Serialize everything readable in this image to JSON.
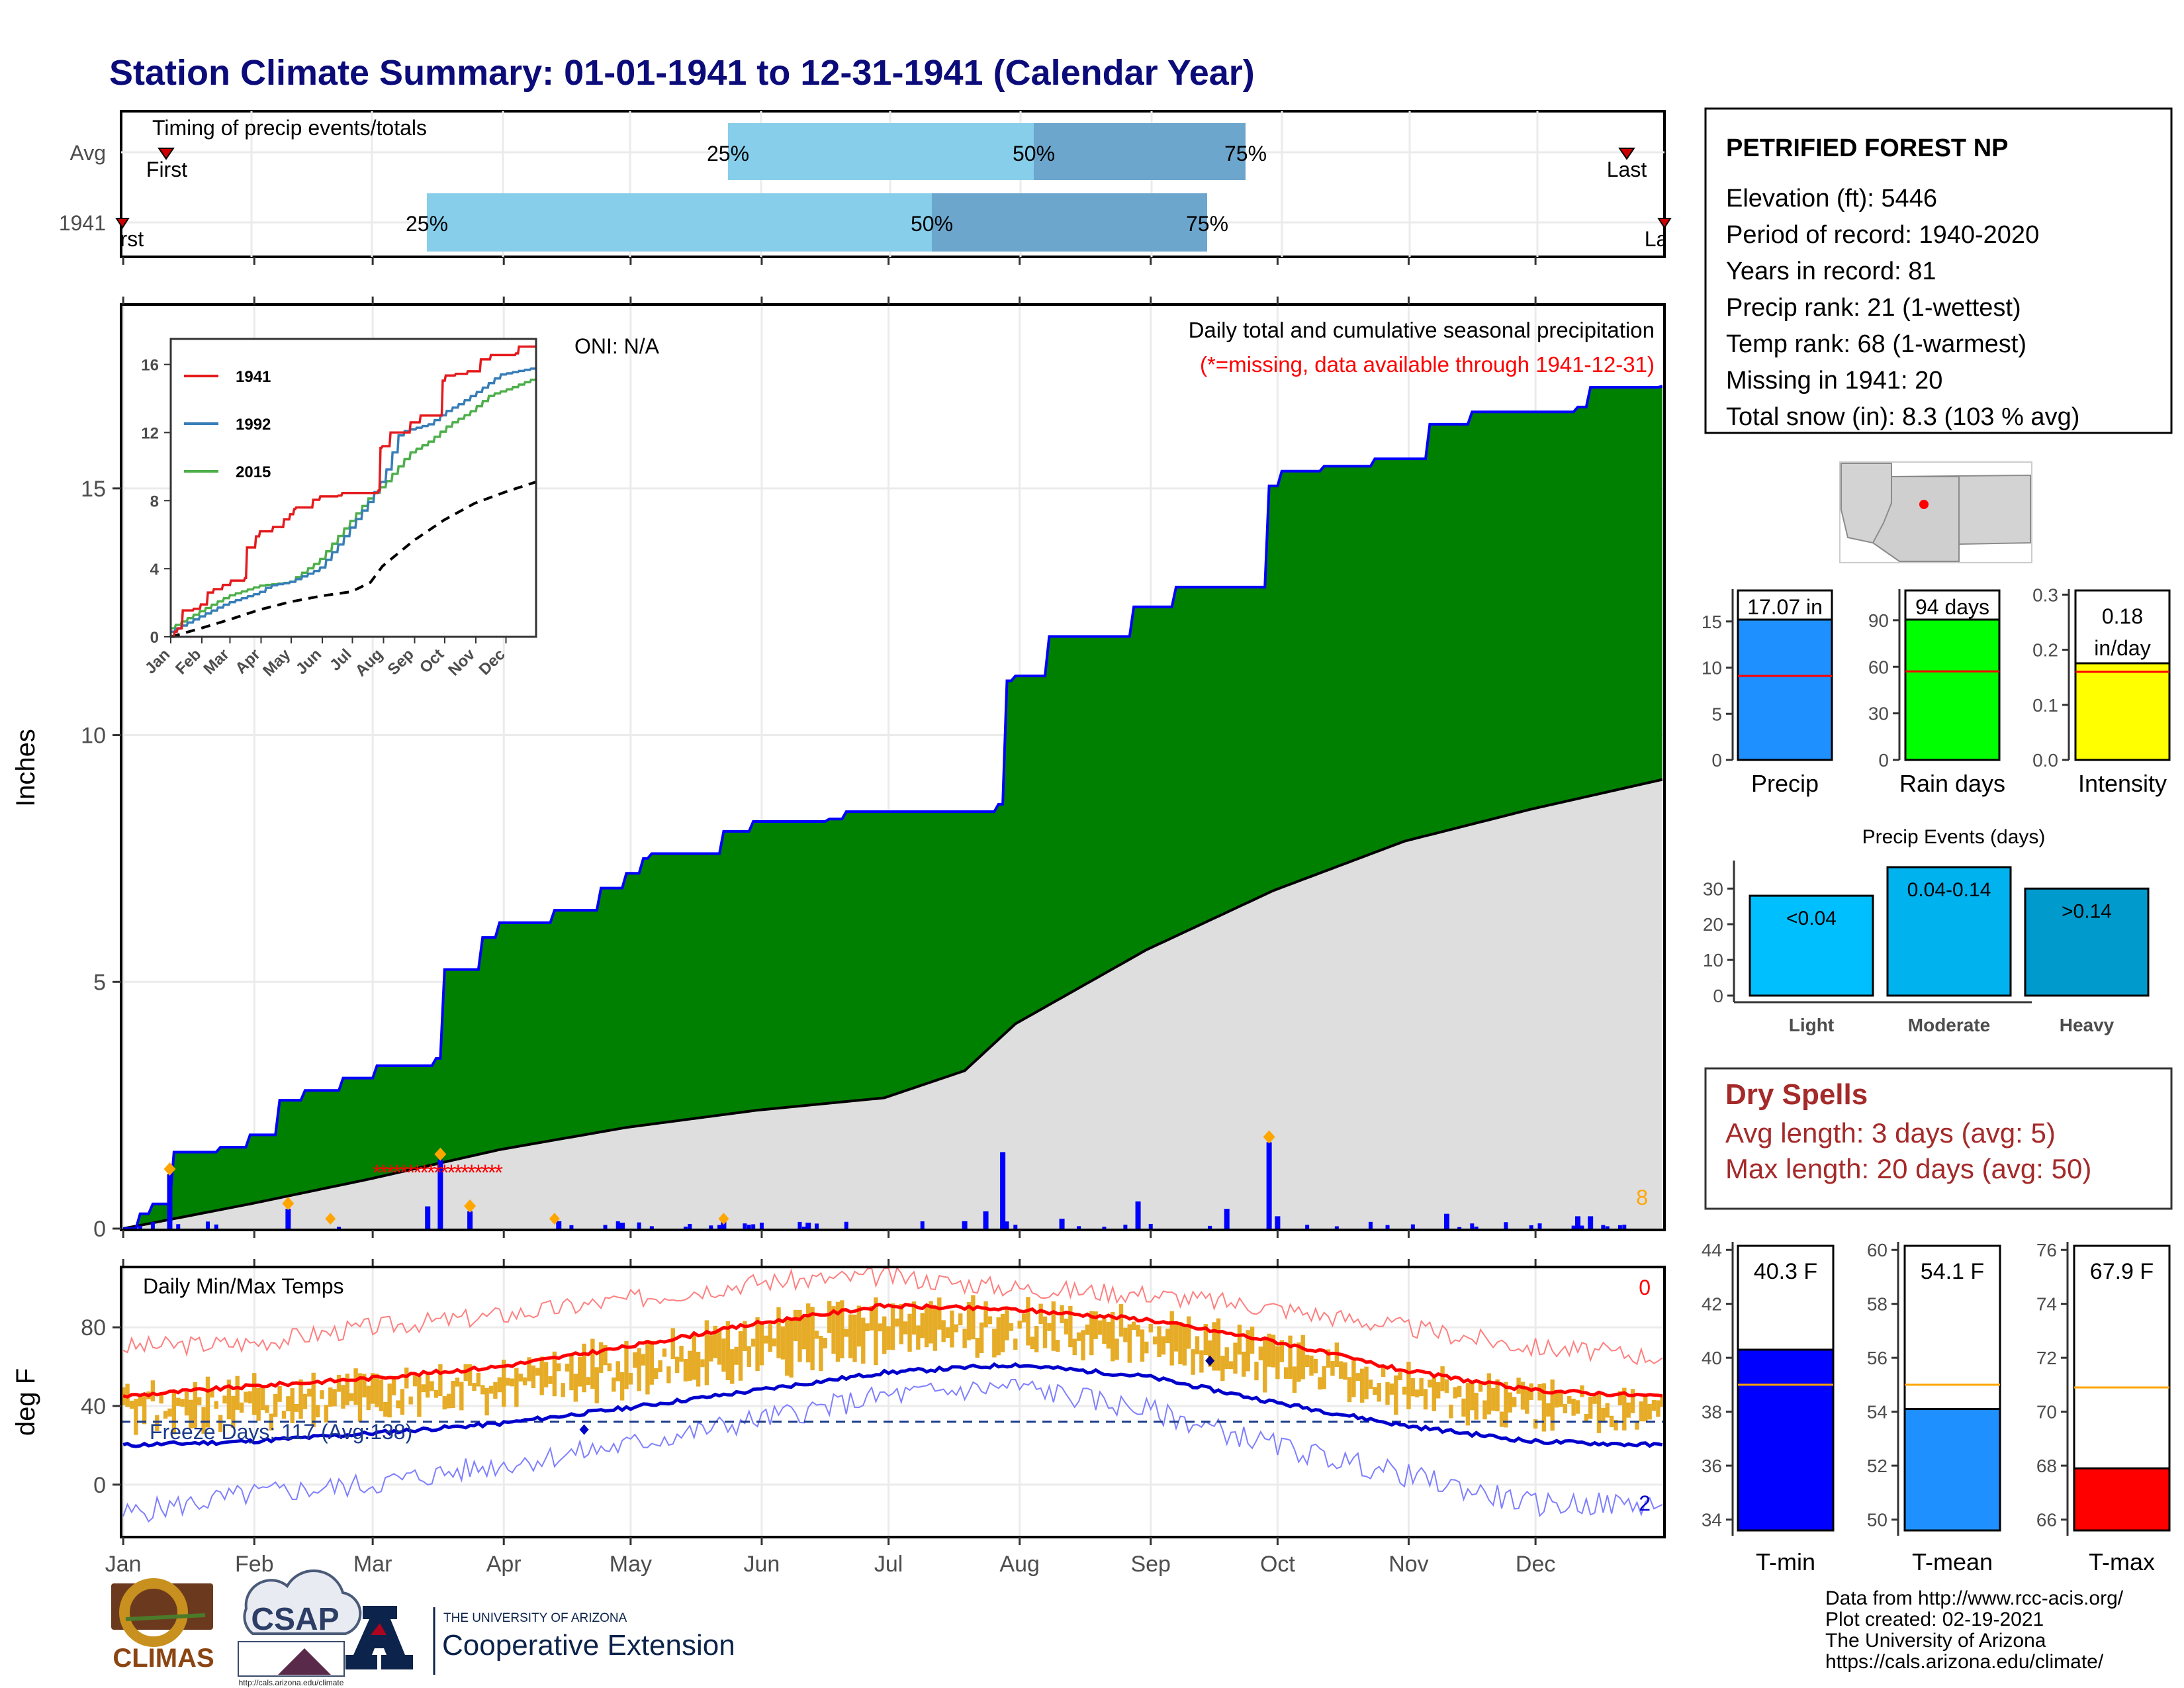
{
  "title": "Station Climate Summary: 01-01-1941 to 12-31-1941 (Calendar Year)",
  "station": {
    "name": "PETRIFIED FOREST NP",
    "lines": [
      "Elevation (ft): 5446",
      "Period of record: 1940-2020",
      "Years in record: 81",
      "Precip rank: 21 (1-wettest)",
      "Temp rank: 68 (1-warmest)",
      "Missing in 1941: 20",
      "Total snow (in): 8.3 (103 % avg)"
    ]
  },
  "timing": {
    "label": "Timing of precip events/totals",
    "rows": [
      {
        "row_label": "Avg",
        "first_label": "First",
        "last_label": "Last",
        "q25": "25%",
        "q50": "50%",
        "q75": "75%"
      },
      {
        "row_label": "1941",
        "first_label": "First",
        "last_label": "Last",
        "q25": "25%",
        "q50": "50%",
        "q75": "75%"
      }
    ]
  },
  "months": [
    "Jan",
    "Feb",
    "Mar",
    "Apr",
    "May",
    "Jun",
    "Jul",
    "Aug",
    "Sep",
    "Oct",
    "Nov",
    "Dec"
  ],
  "precip_panel": {
    "ylabel": "Inches",
    "yticks": [
      "0",
      "5",
      "10",
      "15"
    ],
    "oni": "ONI: N/A",
    "header": "Daily total and cumulative seasonal precipitation",
    "missing_note": "(*=missing, data available through 1941-12-31)",
    "count_label": "8"
  },
  "inset": {
    "yticks": [
      "0",
      "4",
      "8",
      "12",
      "16"
    ],
    "months": [
      "Jan",
      "Feb",
      "Mar",
      "Apr",
      "May",
      "Jun",
      "Jul",
      "Aug",
      "Sep",
      "Oct",
      "Nov",
      "Dec"
    ],
    "legend": [
      "1941",
      "1992",
      "2015"
    ],
    "colors": {
      "1941": "#e41a1c",
      "1992": "#377eb8",
      "2015": "#4daf4a"
    }
  },
  "temp_panel": {
    "ylabel": "deg F",
    "yticks": [
      "0",
      "40",
      "80"
    ],
    "header": "Daily Min/Max Temps",
    "freeze": "Freeze Days: 117 (Avg:138)",
    "max_count": "0",
    "min_count": "2"
  },
  "summary_bars": [
    {
      "label": "Precip",
      "value_text": "17.07 in",
      "yticks": [
        "0",
        "5",
        "10",
        "15"
      ],
      "color": "#1e90ff"
    },
    {
      "label": "Rain days",
      "value_text": "94 days",
      "yticks": [
        "0",
        "30",
        "60",
        "90"
      ],
      "color": "#00ff00"
    },
    {
      "label": "Intensity",
      "value_text": "0.18 in/day",
      "yticks": [
        "0.0",
        "0.1",
        "0.2",
        "0.3"
      ],
      "color": "#ffff00"
    }
  ],
  "events": {
    "title": "Precip Events (days)",
    "yticks": [
      "0",
      "10",
      "20",
      "30"
    ],
    "bars": [
      {
        "label": "Light",
        "range": "<0.04"
      },
      {
        "label": "Moderate",
        "range": "0.04-0.14"
      },
      {
        "label": "Heavy",
        "range": ">0.14"
      }
    ]
  },
  "dry_spells": {
    "title": "Dry Spells",
    "avg": "Avg length: 3 days (avg: 5)",
    "max": "Max length: 20 days (avg: 50)"
  },
  "temp_bars": [
    {
      "label": "T-min",
      "value_text": "40.3 F",
      "yticks": [
        "34",
        "36",
        "38",
        "40",
        "42",
        "44"
      ],
      "color": "#0000ff"
    },
    {
      "label": "T-mean",
      "value_text": "54.1 F",
      "yticks": [
        "50",
        "52",
        "54",
        "56",
        "58",
        "60"
      ],
      "color": "#1e90ff"
    },
    {
      "label": "T-max",
      "value_text": "67.9 F",
      "yticks": [
        "66",
        "68",
        "70",
        "72",
        "74",
        "76"
      ],
      "color": "#ff0000"
    }
  ],
  "footer": {
    "lines": [
      "Data from http://www.rcc-acis.org/",
      "Plot created: 02-19-2021",
      "The University of Arizona",
      "https://cals.arizona.edu/climate/"
    ],
    "logo_climas": "CLIMAS",
    "logo_csap": "CSAP",
    "logo_csap_url": "http://cals.arizona.edu/climate",
    "ua_small": "THE UNIVERSITY OF ARIZONA",
    "ua_big": "Cooperative Extension"
  },
  "chart_data": [
    {
      "type": "area",
      "title": "Daily total and cumulative seasonal precipitation",
      "ylabel": "Inches",
      "ylim": [
        0,
        18.7
      ],
      "x_unit": "day of year",
      "cumulative_1941": {
        "x": [
          1,
          5,
          8,
          13,
          24,
          31,
          38,
          44,
          53,
          61,
          75,
          77,
          86,
          90,
          103,
          114,
          120,
          124,
          126,
          143,
          150,
          168,
          172,
          208,
          210,
          212,
          220,
          240,
          250,
          272,
          275,
          285,
          297,
          310,
          320,
          345,
          348,
          365
        ],
        "y": [
          0.0,
          0.3,
          0.5,
          1.55,
          1.65,
          1.9,
          2.6,
          2.8,
          3.05,
          3.3,
          3.45,
          5.25,
          5.9,
          6.2,
          6.45,
          6.9,
          7.2,
          7.5,
          7.6,
          8.05,
          8.25,
          8.3,
          8.45,
          8.6,
          11.1,
          11.2,
          12.0,
          12.6,
          13.0,
          15.05,
          15.35,
          15.45,
          15.6,
          16.3,
          16.55,
          16.65,
          17.05,
          17.07
        ]
      },
      "cumulative_avg": {
        "x": [
          1,
          31,
          59,
          90,
          120,
          151,
          181,
          200,
          212,
          243,
          273,
          304,
          334,
          365
        ],
        "y": [
          0.0,
          0.5,
          1.0,
          1.6,
          2.05,
          2.4,
          2.65,
          3.2,
          4.15,
          5.65,
          6.85,
          7.85,
          8.5,
          9.1
        ]
      },
      "daily_precip": [
        {
          "x": 12,
          "y": 1.1
        },
        {
          "x": 40,
          "y": 0.4
        },
        {
          "x": 73,
          "y": 0.45
        },
        {
          "x": 76,
          "y": 1.4
        },
        {
          "x": 83,
          "y": 0.35
        },
        {
          "x": 104,
          "y": 0.15
        },
        {
          "x": 119,
          "y": 0.12
        },
        {
          "x": 143,
          "y": 0.2
        },
        {
          "x": 163,
          "y": 0.12
        },
        {
          "x": 200,
          "y": 0.15
        },
        {
          "x": 205,
          "y": 0.35
        },
        {
          "x": 209,
          "y": 1.55
        },
        {
          "x": 223,
          "y": 0.2
        },
        {
          "x": 241,
          "y": 0.55
        },
        {
          "x": 262,
          "y": 0.4
        },
        {
          "x": 272,
          "y": 1.75
        },
        {
          "x": 274,
          "y": 0.25
        },
        {
          "x": 314,
          "y": 0.3
        },
        {
          "x": 345,
          "y": 0.25
        },
        {
          "x": 348,
          "y": 0.25
        }
      ],
      "missing_days": {
        "start": 61,
        "end": 90
      }
    },
    {
      "type": "line",
      "title": "Daily Min/Max Temps",
      "ylabel": "deg F",
      "ylim": [
        -26,
        110
      ],
      "avg_max": {
        "x": [
          1,
          31,
          59,
          90,
          120,
          151,
          181,
          212,
          243,
          273,
          304,
          334,
          365
        ],
        "y": [
          45,
          50,
          54,
          60,
          70,
          82,
          91,
          89,
          84,
          73,
          58,
          48,
          45
        ]
      },
      "avg_min": {
        "x": [
          1,
          31,
          59,
          90,
          120,
          151,
          181,
          212,
          243,
          273,
          304,
          334,
          365
        ],
        "y": [
          20,
          22,
          26,
          31,
          39,
          48,
          57,
          61,
          55,
          42,
          30,
          22,
          20
        ]
      },
      "record_max": {
        "x": [
          1,
          31,
          59,
          90,
          120,
          151,
          181,
          212,
          243,
          273,
          304,
          334,
          365
        ],
        "y": [
          70,
          72,
          80,
          86,
          94,
          103,
          106,
          100,
          97,
          90,
          80,
          70,
          65
        ]
      },
      "record_min": {
        "x": [
          1,
          31,
          59,
          90,
          120,
          151,
          181,
          212,
          243,
          273,
          304,
          334,
          365
        ],
        "y": [
          -15,
          -5,
          0,
          10,
          20,
          33,
          45,
          50,
          38,
          20,
          5,
          -10,
          -10
        ]
      },
      "freeze_line": 32
    },
    {
      "type": "bar",
      "title": "Precip",
      "categories": [
        "Precip"
      ],
      "values": [
        17.07
      ],
      "average": 9.1,
      "ylim": [
        0,
        18.5
      ]
    },
    {
      "type": "bar",
      "title": "Rain days",
      "categories": [
        "Rain days"
      ],
      "values": [
        94
      ],
      "average": 57,
      "ylim": [
        0,
        110
      ]
    },
    {
      "type": "bar",
      "title": "Intensity",
      "categories": [
        "Intensity"
      ],
      "values": [
        0.18
      ],
      "average": 0.16,
      "ylim": [
        0,
        0.31
      ]
    },
    {
      "type": "bar",
      "title": "Precip Events (days)",
      "categories": [
        "Light",
        "Moderate",
        "Heavy"
      ],
      "values": [
        28,
        36,
        30
      ],
      "ylim": [
        0,
        36
      ]
    },
    {
      "type": "bar",
      "title": "Temperature",
      "categories": [
        "T-min",
        "T-mean",
        "T-max"
      ],
      "values": [
        40.3,
        54.1,
        67.9
      ],
      "averages": [
        39.0,
        55.0,
        70.9
      ]
    }
  ]
}
